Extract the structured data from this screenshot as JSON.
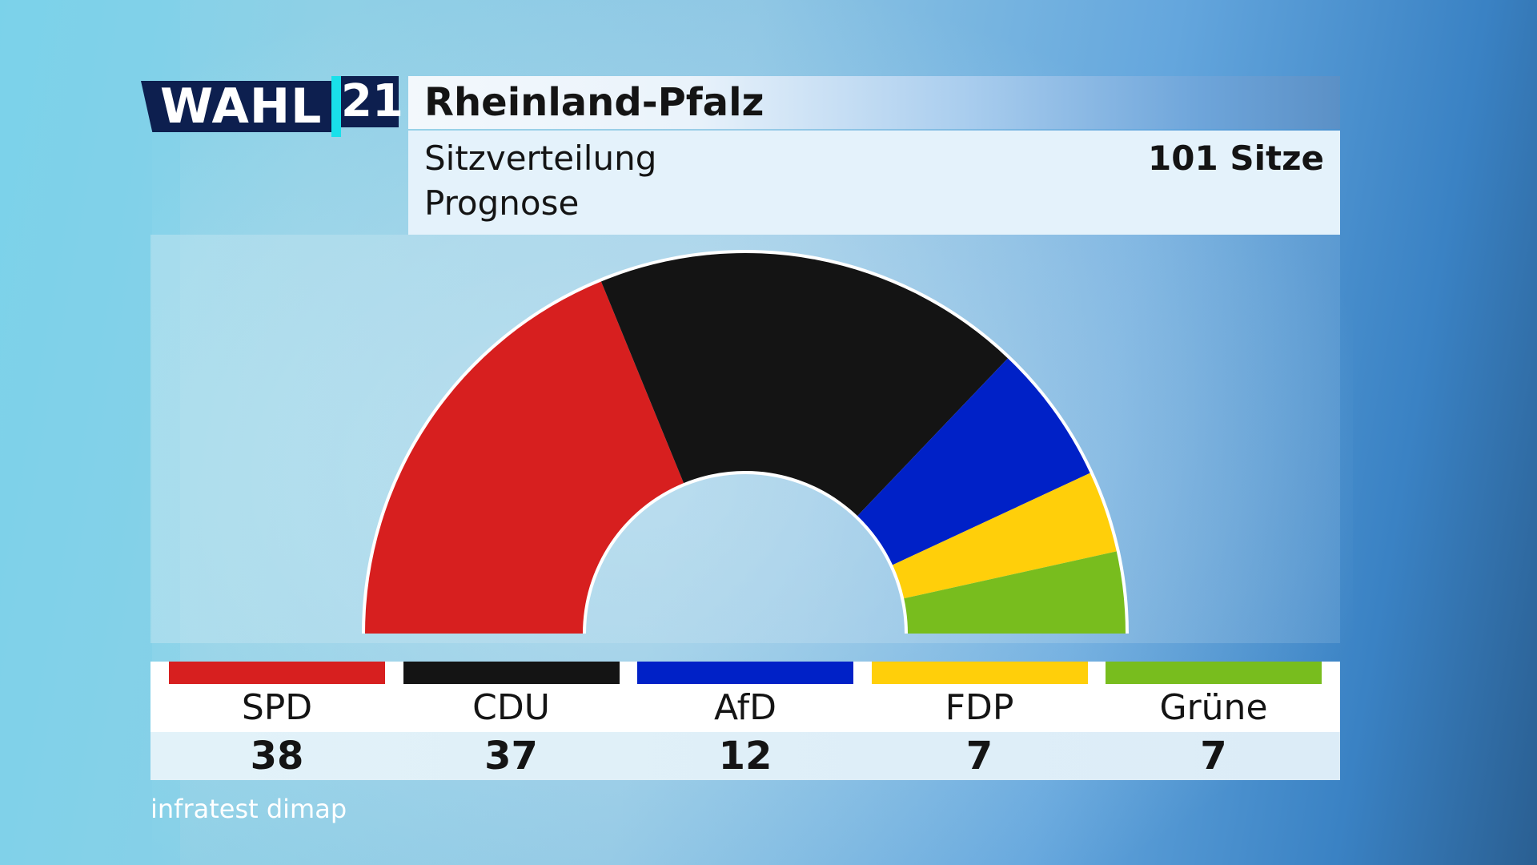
{
  "logo": {
    "wahl": "WAHL",
    "year": "21"
  },
  "header": {
    "title": "Rheinland-Pfalz",
    "subtitle_line1": "Sitzverteilung",
    "subtitle_line2": "Prognose",
    "total_seats_label": "101 Sitze"
  },
  "chart_data": {
    "type": "pie",
    "title": "Sitzverteilung Prognose",
    "total": 101,
    "categories": [
      "SPD",
      "CDU",
      "AfD",
      "FDP",
      "Grüne"
    ],
    "values": [
      38,
      37,
      12,
      7,
      7
    ],
    "colors": [
      "#d71f1f",
      "#141414",
      "#0021c7",
      "#ffcf0a",
      "#78bd1e"
    ]
  },
  "source": "infratest dimap"
}
